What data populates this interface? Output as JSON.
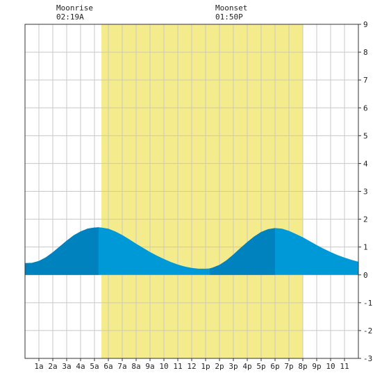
{
  "moon": {
    "rise_label": "Moonrise",
    "rise_time": "02:19A",
    "set_label": "Moonset",
    "set_time": "01:50P"
  },
  "chart_data": {
    "type": "area",
    "title": "",
    "xlabel": "",
    "ylabel": "",
    "xlim": [
      0,
      24
    ],
    "ylim": [
      -3,
      9
    ],
    "grid": true,
    "x_tick_labels": [
      "1a",
      "2a",
      "3a",
      "4a",
      "5a",
      "6a",
      "7a",
      "8a",
      "9a",
      "10",
      "11",
      "12",
      "1p",
      "2p",
      "3p",
      "4p",
      "5p",
      "6p",
      "7p",
      "8p",
      "9p",
      "10",
      "11"
    ],
    "y_tick_labels": [
      "9",
      "8",
      "7",
      "6",
      "5",
      "4",
      "3",
      "2",
      "1",
      "0",
      "-1",
      "-2",
      "-3"
    ],
    "daylight_span_hours": [
      5.5,
      20.0
    ],
    "series": [
      {
        "x": [
          0,
          0.5,
          1,
          1.5,
          2,
          2.5,
          3,
          3.5,
          4,
          4.5,
          5,
          5.3,
          5.5,
          6,
          6.5,
          7,
          7.5,
          8,
          8.5,
          9,
          9.5,
          10,
          10.5,
          11,
          11.5,
          12,
          12.5,
          13,
          13.3,
          13.5,
          14,
          14.5,
          15,
          15.5,
          16,
          16.5,
          17,
          17.5,
          18,
          18.5,
          19,
          19.5,
          20,
          20.5,
          21,
          21.5,
          22,
          22.5,
          23,
          23.5,
          24
        ],
        "y": [
          0.42,
          0.43,
          0.5,
          0.63,
          0.81,
          1.02,
          1.23,
          1.42,
          1.56,
          1.66,
          1.7,
          1.71,
          1.7,
          1.66,
          1.56,
          1.43,
          1.28,
          1.12,
          0.97,
          0.82,
          0.69,
          0.57,
          0.46,
          0.37,
          0.3,
          0.25,
          0.22,
          0.22,
          0.23,
          0.26,
          0.36,
          0.52,
          0.73,
          0.96,
          1.18,
          1.38,
          1.54,
          1.64,
          1.68,
          1.66,
          1.58,
          1.47,
          1.35,
          1.21,
          1.07,
          0.94,
          0.82,
          0.71,
          0.62,
          0.54,
          0.47
        ]
      }
    ],
    "colors": {
      "daylight": "#f3eb8c",
      "tide": "#0099d8",
      "tide_dark": "#0082bf",
      "grid": "#c8c8c8",
      "frame": "#333333"
    }
  }
}
